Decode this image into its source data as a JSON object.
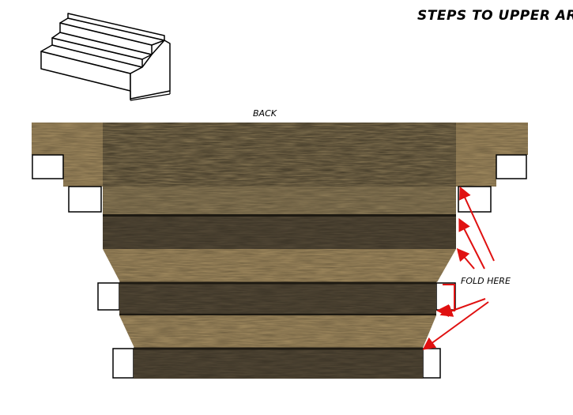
{
  "title": "STEPS TO UPPER AREA",
  "labels": {
    "back": "BACK",
    "fold": "FOLD HERE"
  },
  "colors": {
    "light_wood": "#a78f62",
    "top_wood": "#8f7d58",
    "dark_wood": "#564b38",
    "edge_line": "#1e1a12",
    "arrow": "#e01010"
  },
  "icons": [
    "staircase-sketch",
    "fold-arrow"
  ]
}
